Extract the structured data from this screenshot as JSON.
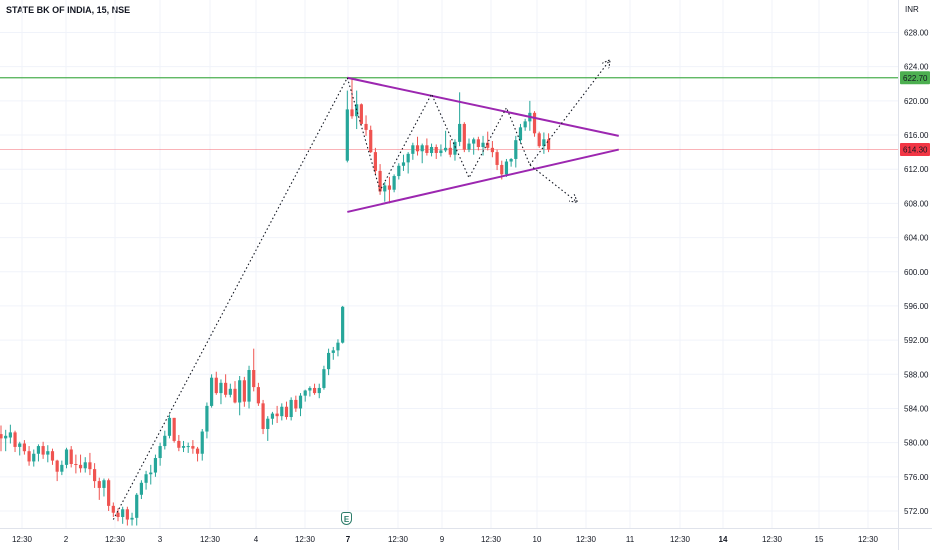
{
  "header": {
    "symbol": "STATE BK OF INDIA, 15, NSE",
    "currency": "INR"
  },
  "colors": {
    "bull": "#26a69a",
    "bear": "#ef5350",
    "pattern": "#9c27b0",
    "resistance": "#4caf50",
    "last_price": "#f23645",
    "grid": "#f0f3fa"
  },
  "earnings_icon": {
    "letter": "E"
  },
  "chart_data": {
    "type": "candlestick",
    "title": "STATE BK OF INDIA, 15, NSE",
    "ylabel": "INR",
    "ylim": [
      570,
      630
    ],
    "y_ticks": [
      572,
      576,
      580,
      584,
      588,
      592,
      596,
      600,
      604,
      608,
      612,
      616,
      620,
      624,
      628
    ],
    "y_tick_labels": [
      "572.00",
      "576.00",
      "580.00",
      "584.00",
      "588.00",
      "592.00",
      "596.00",
      "600.00",
      "604.00",
      "608.00",
      "612.00",
      "616.00",
      "620.00",
      "624.00",
      "628.00"
    ],
    "x_ticks": [
      {
        "label": "12:30",
        "bold": false
      },
      {
        "label": "2",
        "bold": false
      },
      {
        "label": "12:30",
        "bold": false
      },
      {
        "label": "3",
        "bold": false
      },
      {
        "label": "12:30",
        "bold": false
      },
      {
        "label": "4",
        "bold": false
      },
      {
        "label": "12:30",
        "bold": false
      },
      {
        "label": "7",
        "bold": true
      },
      {
        "label": "12:30",
        "bold": false
      },
      {
        "label": "9",
        "bold": false
      },
      {
        "label": "12:30",
        "bold": false
      },
      {
        "label": "10",
        "bold": false
      },
      {
        "label": "12:30",
        "bold": false
      },
      {
        "label": "11",
        "bold": false
      },
      {
        "label": "12:30",
        "bold": false
      },
      {
        "label": "14",
        "bold": true
      },
      {
        "label": "12:30",
        "bold": false
      },
      {
        "label": "15",
        "bold": false
      },
      {
        "label": "12:30",
        "bold": false
      }
    ],
    "resistance_level": 622.7,
    "last_price": 614.3,
    "resistance_label": "622.70",
    "last_price_label": "614.30",
    "candles": [
      [
        581.0,
        582.0,
        579.0,
        580.5
      ],
      [
        580.5,
        581.5,
        579.0,
        580.8
      ],
      [
        580.6,
        582.1,
        579.9,
        581.2
      ],
      [
        581.2,
        581.4,
        578.9,
        579.5
      ],
      [
        579.5,
        580.1,
        578.5,
        579.9
      ],
      [
        579.9,
        580.3,
        578.6,
        579.0
      ],
      [
        579.0,
        579.6,
        577.3,
        577.8
      ],
      [
        577.8,
        579.2,
        577.2,
        578.7
      ],
      [
        578.7,
        579.8,
        577.8,
        579.6
      ],
      [
        579.6,
        580.1,
        578.1,
        578.6
      ],
      [
        578.6,
        579.7,
        577.7,
        579.0
      ],
      [
        579.0,
        579.3,
        577.4,
        577.9
      ],
      [
        577.9,
        578.0,
        575.5,
        576.6
      ],
      [
        576.6,
        577.9,
        576.2,
        577.4
      ],
      [
        577.4,
        579.4,
        577.0,
        579.2
      ],
      [
        579.2,
        579.6,
        577.1,
        577.5
      ],
      [
        577.5,
        578.6,
        576.4,
        577.4
      ],
      [
        577.4,
        578.6,
        576.5,
        577.0
      ],
      [
        577.0,
        578.3,
        576.5,
        577.7
      ],
      [
        577.7,
        578.8,
        576.2,
        576.9
      ],
      [
        576.9,
        577.6,
        574.7,
        575.5
      ],
      [
        575.5,
        575.9,
        573.3,
        574.7
      ],
      [
        574.7,
        575.8,
        573.7,
        575.6
      ],
      [
        575.6,
        575.8,
        572.0,
        572.6
      ],
      [
        572.6,
        573.0,
        571.3,
        571.8
      ],
      [
        571.8,
        572.3,
        570.8,
        571.3
      ],
      [
        571.3,
        572.5,
        570.5,
        572.2
      ],
      [
        572.2,
        572.5,
        570.3,
        571.0
      ],
      [
        571.0,
        571.8,
        570.3,
        571.2
      ],
      [
        571.2,
        574.1,
        570.3,
        573.9
      ],
      [
        573.9,
        575.6,
        573.4,
        575.3
      ],
      [
        575.3,
        576.7,
        574.5,
        576.3
      ],
      [
        576.3,
        577.4,
        575.1,
        576.5
      ],
      [
        576.5,
        578.6,
        576.0,
        578.2
      ],
      [
        578.2,
        580.0,
        577.3,
        579.6
      ],
      [
        579.6,
        581.4,
        579.2,
        580.8
      ],
      [
        580.8,
        583.3,
        580.5,
        582.9
      ],
      [
        582.9,
        582.9,
        580.0,
        580.2
      ],
      [
        580.2,
        580.9,
        579.0,
        579.4
      ],
      [
        579.4,
        580.2,
        578.9,
        579.6
      ],
      [
        579.6,
        580.0,
        578.8,
        579.6
      ],
      [
        579.6,
        580.3,
        578.7,
        579.3
      ],
      [
        579.3,
        579.5,
        577.8,
        578.7
      ],
      [
        578.7,
        581.6,
        577.9,
        581.3
      ],
      [
        581.3,
        584.7,
        580.5,
        584.3
      ],
      [
        584.3,
        588.0,
        584.1,
        587.6
      ],
      [
        587.6,
        588.3,
        585.6,
        585.8
      ],
      [
        585.8,
        587.4,
        584.5,
        587.0
      ],
      [
        587.0,
        588.0,
        585.3,
        585.6
      ],
      [
        585.6,
        586.9,
        585.3,
        586.3
      ],
      [
        586.3,
        587.2,
        584.6,
        584.7
      ],
      [
        584.7,
        587.8,
        583.2,
        587.3
      ],
      [
        587.3,
        587.7,
        584.2,
        584.8
      ],
      [
        584.8,
        589.0,
        584.0,
        588.5
      ],
      [
        588.5,
        591.0,
        586.0,
        586.5
      ],
      [
        586.5,
        587.0,
        584.3,
        584.6
      ],
      [
        584.6,
        585.0,
        581.0,
        581.6
      ],
      [
        581.6,
        583.1,
        580.2,
        582.8
      ],
      [
        582.8,
        583.6,
        582.1,
        583.4
      ],
      [
        583.4,
        584.3,
        582.3,
        583.1
      ],
      [
        583.1,
        584.6,
        582.6,
        584.2
      ],
      [
        584.2,
        584.8,
        582.7,
        583.0
      ],
      [
        583.0,
        585.3,
        582.6,
        585.0
      ],
      [
        585.0,
        585.5,
        583.6,
        584.0
      ],
      [
        584.0,
        585.8,
        583.1,
        585.5
      ],
      [
        585.5,
        586.2,
        584.8,
        586.1
      ],
      [
        586.1,
        586.6,
        585.4,
        586.4
      ],
      [
        586.4,
        586.9,
        585.6,
        585.8
      ],
      [
        585.8,
        586.9,
        585.2,
        586.4
      ],
      [
        586.4,
        589.0,
        586.2,
        588.6
      ],
      [
        588.6,
        591.0,
        587.9,
        590.5
      ],
      [
        590.5,
        591.2,
        589.7,
        590.8
      ],
      [
        590.8,
        592.1,
        590.1,
        591.7
      ],
      [
        591.7,
        596.0,
        591.6,
        595.9
      ],
      [
        613.0,
        621.2,
        612.8,
        619.0
      ],
      [
        619.0,
        622.5,
        617.9,
        618.2
      ],
      [
        618.2,
        621.2,
        616.7,
        619.6
      ],
      [
        619.6,
        619.7,
        617.1,
        617.3
      ],
      [
        617.3,
        618.3,
        615.9,
        616.6
      ],
      [
        616.6,
        617.1,
        613.9,
        614.0
      ],
      [
        614.0,
        614.5,
        611.4,
        611.8
      ],
      [
        611.8,
        612.6,
        609.0,
        609.4
      ],
      [
        609.4,
        610.5,
        608.2,
        610.1
      ],
      [
        610.1,
        611.1,
        608.0,
        609.6
      ],
      [
        609.6,
        611.4,
        609.3,
        611.2
      ],
      [
        611.2,
        612.7,
        610.8,
        612.4
      ],
      [
        612.4,
        613.7,
        611.8,
        612.8
      ],
      [
        612.8,
        614.0,
        611.5,
        613.8
      ],
      [
        613.8,
        615.1,
        613.1,
        614.8
      ],
      [
        614.8,
        615.8,
        613.6,
        614.1
      ],
      [
        614.1,
        615.0,
        612.7,
        614.8
      ],
      [
        614.8,
        615.6,
        613.6,
        613.9
      ],
      [
        613.9,
        615.0,
        613.5,
        614.6
      ],
      [
        614.6,
        614.9,
        613.2,
        613.9
      ],
      [
        613.9,
        614.9,
        613.5,
        614.2
      ],
      [
        614.2,
        616.5,
        614.0,
        614.5
      ],
      [
        614.5,
        615.4,
        613.4,
        613.7
      ],
      [
        613.7,
        615.5,
        613.0,
        615.2
      ],
      [
        615.2,
        621.0,
        614.7,
        617.3
      ],
      [
        617.3,
        617.5,
        614.0,
        614.3
      ],
      [
        614.3,
        615.6,
        614.0,
        615.0
      ],
      [
        615.0,
        615.7,
        613.7,
        615.5
      ],
      [
        615.5,
        615.8,
        614.2,
        614.6
      ],
      [
        614.6,
        615.9,
        613.6,
        615.1
      ],
      [
        615.1,
        616.4,
        614.2,
        614.5
      ],
      [
        614.5,
        615.3,
        613.4,
        614.0
      ],
      [
        614.0,
        614.3,
        611.9,
        612.5
      ],
      [
        612.5,
        613.0,
        610.8,
        611.4
      ],
      [
        611.4,
        613.2,
        611.1,
        612.9
      ],
      [
        612.9,
        613.3,
        612.3,
        613.2
      ],
      [
        613.2,
        615.9,
        612.2,
        615.4
      ],
      [
        615.4,
        617.3,
        615.0,
        616.9
      ],
      [
        616.9,
        617.9,
        616.5,
        617.6
      ],
      [
        617.6,
        620.0,
        616.5,
        618.6
      ],
      [
        618.6,
        618.8,
        615.8,
        616.2
      ],
      [
        616.2,
        616.4,
        614.5,
        614.7
      ],
      [
        614.7,
        616.3,
        613.8,
        615.5
      ],
      [
        615.5,
        616.2,
        614.0,
        614.3
      ]
    ],
    "pattern": {
      "name": "symmetrical triangle",
      "upper_line": [
        {
          "bar": 74,
          "price": 622.7
        },
        {
          "bar": 132,
          "price": 615.9
        }
      ],
      "lower_line": [
        {
          "bar": 74,
          "price": 607.0
        },
        {
          "bar": 132,
          "price": 614.3
        }
      ]
    },
    "projection_path": [
      {
        "bar": 24,
        "price": 571.0
      },
      {
        "bar": 74,
        "price": 622.7
      },
      {
        "bar": 81,
        "price": 609.5
      },
      {
        "bar": 92,
        "price": 620.8
      },
      {
        "bar": 100,
        "price": 611.0
      },
      {
        "bar": 108,
        "price": 619.2
      },
      {
        "bar": 113,
        "price": 612.5
      },
      {
        "bar": 123,
        "price": 608.2
      }
    ],
    "breakout_arrow": [
      {
        "bar": 113,
        "price": 612.5
      },
      {
        "bar": 130,
        "price": 624.7
      }
    ]
  }
}
